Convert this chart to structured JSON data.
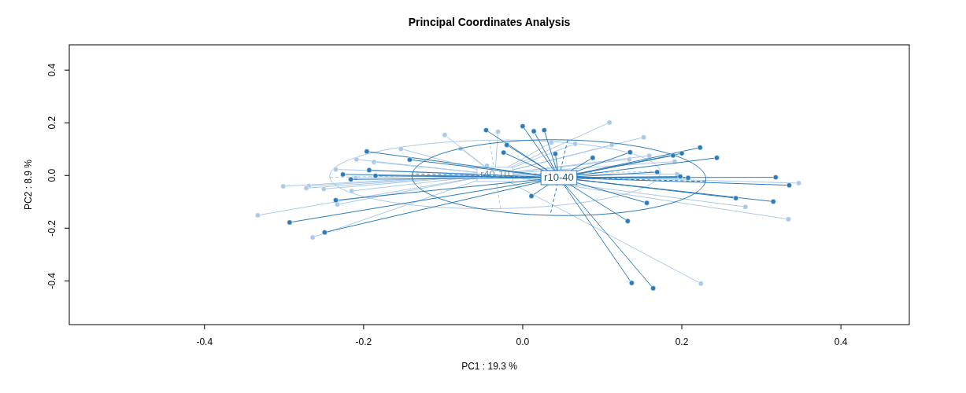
{
  "chart_data": {
    "type": "scatter",
    "title": "Principal Coordinates Analysis",
    "xlabel": "PC1 :  19.3 %",
    "ylabel": "PC2 :  8.9 %",
    "marker": "circle",
    "xlim": [
      -0.57,
      0.486
    ],
    "ylim": [
      -0.566,
      0.496
    ],
    "xticks": [
      -0.4,
      -0.2,
      {
        "value": 0,
        "label": "0.0"
      },
      0.2,
      0.4
    ],
    "yticks": [
      -0.4,
      -0.2,
      {
        "value": 0,
        "label": "0.0"
      },
      0.2,
      0.4
    ],
    "series": [
      {
        "name": "r40-10",
        "color": "#abc9e6",
        "x": [
          -0.153,
          -0.209,
          -0.187,
          -0.235,
          -0.21,
          -0.301,
          -0.269,
          -0.272,
          -0.25,
          -0.215,
          -0.233,
          -0.333,
          -0.264,
          -0.098,
          -0.031,
          -0.078,
          -0.045,
          0.036,
          0.109,
          0.152,
          0.066,
          0.112,
          0.134,
          0.159,
          0.191,
          0.194,
          0.347,
          0.28,
          0.334,
          0.224
        ],
        "values": [
          0.101,
          0.061,
          0.051,
          0.023,
          -0.01,
          -0.041,
          -0.04,
          -0.048,
          -0.051,
          -0.059,
          -0.11,
          -0.151,
          -0.235,
          0.154,
          0.166,
          0.102,
          0.037,
          0.125,
          0.201,
          0.145,
          0.12,
          0.116,
          0.061,
          0.075,
          0.053,
          0.005,
          -0.029,
          -0.119,
          -0.166,
          -0.41
        ]
      },
      {
        "name": "r10-40",
        "color": "#2c7bb6",
        "x": [
          -0.196,
          -0.142,
          -0.193,
          -0.226,
          -0.216,
          -0.185,
          -0.235,
          -0.293,
          -0.249,
          -0.046,
          0.0,
          0.014,
          0.027,
          -0.02,
          -0.024,
          0.041,
          0.011,
          0.052,
          0.088,
          0.135,
          0.189,
          0.2,
          0.223,
          0.244,
          0.169,
          0.198,
          0.208,
          0.156,
          0.268,
          0.318,
          0.335,
          0.315,
          0.132,
          0.137,
          0.164
        ],
        "values": [
          0.091,
          0.06,
          0.02,
          0.004,
          -0.015,
          -0.001,
          -0.094,
          -0.178,
          -0.216,
          0.172,
          0.187,
          0.168,
          0.172,
          0.116,
          0.087,
          0.082,
          -0.078,
          null,
          0.067,
          0.088,
          0.076,
          0.084,
          0.106,
          0.067,
          0.013,
          -0.004,
          -0.009,
          -0.104,
          -0.086,
          -0.007,
          -0.037,
          -0.099,
          -0.173,
          -0.408,
          -0.428
        ]
      }
    ]
  }
}
